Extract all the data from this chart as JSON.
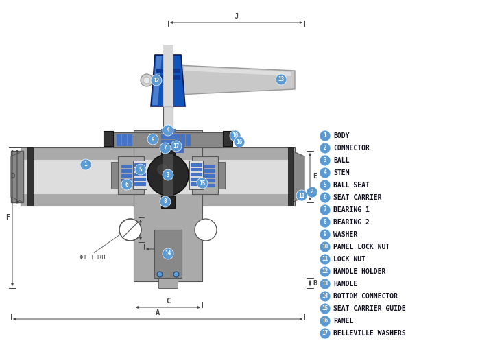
{
  "background": "#ffffff",
  "blue_dark": "#1a3a6b",
  "blue_med": "#4472c4",
  "blue_badge": "#5b9bd5",
  "gray_body": "#aaaaaa",
  "gray_dark": "#555555",
  "gray_mid": "#888888",
  "gray_light": "#cccccc",
  "gray_lighter": "#dddddd",
  "black_part": "#222222",
  "stem_blue": "#1155bb",
  "dim_color": "#444444",
  "legend_items": [
    {
      "num": 1,
      "label": "BODY"
    },
    {
      "num": 2,
      "label": "CONNECTOR"
    },
    {
      "num": 3,
      "label": "BALL"
    },
    {
      "num": 4,
      "label": "STEM"
    },
    {
      "num": 5,
      "label": "BALL SEAT"
    },
    {
      "num": 6,
      "label": "SEAT CARRIER"
    },
    {
      "num": 7,
      "label": "BEARING 1"
    },
    {
      "num": 8,
      "label": "BEARING 2"
    },
    {
      "num": 9,
      "label": "WASHER"
    },
    {
      "num": 10,
      "label": "PANEL LOCK NUT"
    },
    {
      "num": 11,
      "label": "LOCK NUT"
    },
    {
      "num": 12,
      "label": "HANDLE HOLDER"
    },
    {
      "num": 13,
      "label": "HANDLE"
    },
    {
      "num": 14,
      "label": "BOTTOM CONNECTOR"
    },
    {
      "num": 15,
      "label": "SEAT CARRIER GUIDE"
    },
    {
      "num": 16,
      "label": "PANEL"
    },
    {
      "num": 17,
      "label": "BELLEVILLE WASHERS"
    }
  ]
}
